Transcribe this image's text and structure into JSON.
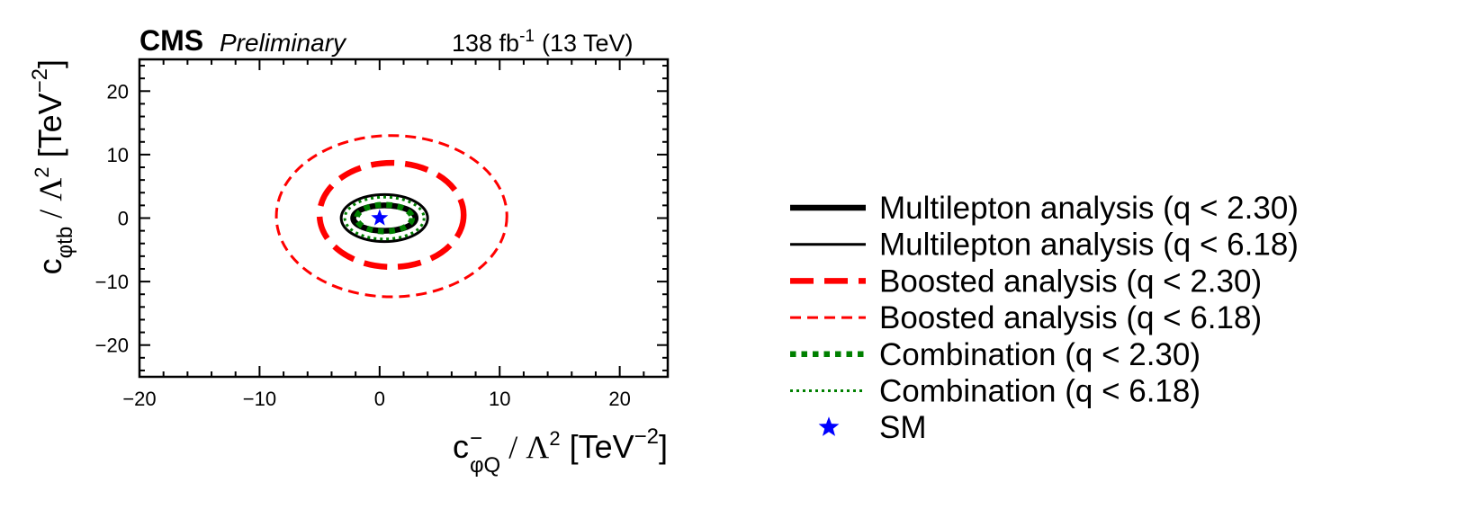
{
  "chart_data": {
    "type": "contour",
    "experiment": "CMS",
    "status": "Preliminary",
    "luminosity": "138 fb",
    "luminosity_exponent": "-1",
    "energy": "(13 TeV)",
    "xlabel": {
      "base": "c",
      "superscript": "−",
      "subscript": "φQ",
      "separator": " / ",
      "lambda": "Λ",
      "lambda_power": "2",
      "unit": " [TeV",
      "unit_power": "−2",
      "unit_close": "]"
    },
    "ylabel": {
      "base": "c",
      "subscript": "φtb",
      "separator": " / ",
      "lambda": "Λ",
      "lambda_power": "2",
      "unit": " [TeV",
      "unit_power": "−2",
      "unit_close": "]"
    },
    "xlim": [
      -20,
      24
    ],
    "ylim": [
      -25,
      25
    ],
    "xticks": [
      -20,
      -10,
      0,
      10,
      20
    ],
    "yticks": [
      -20,
      -10,
      0,
      10,
      20
    ],
    "tick_labels": {
      "x": [
        "−20",
        "−10",
        "0",
        "10",
        "20"
      ],
      "y": [
        "−20",
        "−10",
        "0",
        "10",
        "20"
      ]
    },
    "series": [
      {
        "name": "Multilepton analysis (q < 2.30)",
        "legend_text": "Multilepton analysis (q < 2.30)",
        "color": "#000000",
        "style": "solid",
        "weight": "thick",
        "center": [
          0.4,
          0.0
        ],
        "semi_axes": [
          2.6,
          2.0
        ]
      },
      {
        "name": "Multilepton analysis (q < 6.18)",
        "legend_text": "Multilepton analysis (q < 6.18)",
        "color": "#000000",
        "style": "solid",
        "weight": "thin",
        "center": [
          0.4,
          0.0
        ],
        "semi_axes": [
          3.6,
          3.7
        ]
      },
      {
        "name": "Boosted analysis (q < 2.30)",
        "legend_text": "Boosted analysis (q < 2.30)",
        "color": "#ff0000",
        "style": "dashed",
        "weight": "thick",
        "center": [
          1.0,
          0.5
        ],
        "semi_axes": [
          6.0,
          8.2
        ]
      },
      {
        "name": "Boosted analysis (q < 6.18)",
        "legend_text": "Boosted analysis (q < 6.18)",
        "color": "#ff0000",
        "style": "dashed",
        "weight": "thin",
        "center": [
          1.0,
          0.3
        ],
        "semi_axes": [
          9.6,
          12.7
        ]
      },
      {
        "name": "Combination (q < 2.30)",
        "legend_text": "Combination (q < 2.30)",
        "color": "#008000",
        "style": "dotted",
        "weight": "thick",
        "center": [
          0.4,
          0.0
        ],
        "semi_axes": [
          2.3,
          2.1
        ]
      },
      {
        "name": "Combination (q < 6.18)",
        "legend_text": "Combination (q < 6.18)",
        "color": "#008000",
        "style": "dotted",
        "weight": "thin",
        "center": [
          0.4,
          0.0
        ],
        "semi_axes": [
          3.3,
          3.3
        ]
      }
    ],
    "points": [
      {
        "name": "SM",
        "legend_text": "SM",
        "x": 0,
        "y": 0,
        "marker": "star",
        "color": "#0000ff"
      }
    ],
    "legend_position": "right"
  }
}
